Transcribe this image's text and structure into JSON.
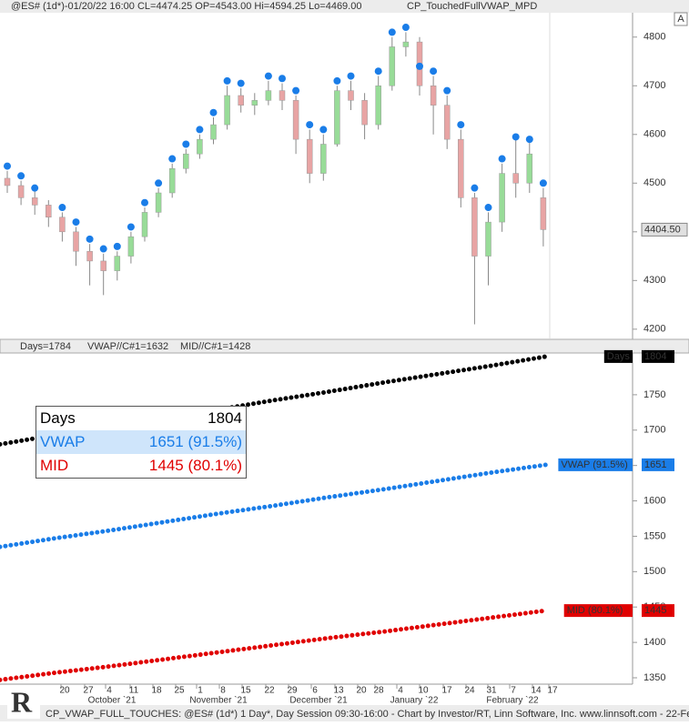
{
  "header": {
    "instrument": "@ES# (1d*)-01/20/22 16:00 CL=4474.25 OP=4543.00 Hi=4594.25 Lo=4469.00",
    "indicator": "CP_TouchedFullVWAP_MPD",
    "last_price": "4404.50",
    "autoscale": "A"
  },
  "lower_legend": [
    "Days=1784",
    "VWAP//C#1=1632",
    "MID//C#1=1428"
  ],
  "tooltip": [
    {
      "label": "Days",
      "value": "1804"
    },
    {
      "label": "VWAP",
      "value": "1651 (91.5%)"
    },
    {
      "label": "MID",
      "value": "1445 (80.1%)"
    }
  ],
  "date_labels": [
    "20",
    "27",
    "4",
    "11",
    "18",
    "25",
    "1",
    "8",
    "15",
    "22",
    "29",
    "6",
    "13",
    "20",
    "28",
    "4",
    "10",
    "17",
    "24",
    "31",
    "7",
    "14",
    "17"
  ],
  "month_labels": [
    "October `21",
    "November `21",
    "December `21",
    "January `22",
    "February `22"
  ],
  "footer": "CP_VWAP_FULL_TOUCHES: @ES# (1d*) 1 Day*, Day Session 09:30-16:00 - Chart by Investor/RT, Linn Software, Inc. www.linnsoft.com - 22-Feb",
  "chart_data": [
    {
      "type": "candlestick",
      "up_color": "#98dc98",
      "down_color": "#e8a4a4",
      "touch_color": "#1a7de8",
      "open": [
        4510,
        4495,
        4470,
        4455,
        4430,
        4400,
        4360,
        4340,
        4320,
        4350,
        4390,
        4440,
        4480,
        4530,
        4560,
        4590,
        4620,
        4680,
        4660,
        4670,
        4690,
        4670,
        4590,
        4520,
        4580,
        4690,
        4670,
        4620,
        4700,
        4780,
        4790,
        4700,
        4660,
        4590,
        4470,
        4350,
        4420,
        4520,
        4500,
        4470
      ],
      "high": [
        4525,
        4505,
        4485,
        4465,
        4440,
        4410,
        4375,
        4355,
        4360,
        4400,
        4450,
        4490,
        4540,
        4570,
        4600,
        4635,
        4700,
        4695,
        4685,
        4710,
        4705,
        4680,
        4610,
        4600,
        4700,
        4710,
        4685,
        4720,
        4800,
        4810,
        4800,
        4720,
        4680,
        4610,
        4480,
        4440,
        4540,
        4590,
        4585,
        4490
      ],
      "low": [
        4480,
        4455,
        4435,
        4410,
        4380,
        4330,
        4290,
        4270,
        4300,
        4335,
        4380,
        4430,
        4470,
        4520,
        4550,
        4580,
        4610,
        4645,
        4640,
        4660,
        4650,
        4560,
        4500,
        4505,
        4575,
        4650,
        4590,
        4610,
        4690,
        4760,
        4680,
        4600,
        4570,
        4450,
        4210,
        4290,
        4400,
        4470,
        4480,
        4370
      ],
      "close": [
        4495,
        4470,
        4455,
        4430,
        4400,
        4360,
        4340,
        4320,
        4350,
        4390,
        4440,
        4480,
        4530,
        4560,
        4590,
        4620,
        4680,
        4660,
        4670,
        4690,
        4670,
        4590,
        4520,
        4580,
        4690,
        4670,
        4620,
        4700,
        4780,
        4790,
        4700,
        4660,
        4590,
        4470,
        4350,
        4420,
        4520,
        4500,
        4560,
        4404.5
      ],
      "touches": [
        4535,
        4515,
        4490,
        null,
        4450,
        4420,
        4385,
        4365,
        4370,
        4410,
        4460,
        4500,
        4550,
        4580,
        4610,
        4645,
        4710,
        4705,
        null,
        4720,
        4715,
        4690,
        4620,
        4610,
        4710,
        4720,
        null,
        4730,
        4810,
        4820,
        4740,
        4730,
        4690,
        4620,
        4490,
        4450,
        4550,
        4595,
        4590,
        4500
      ],
      "ylim": [
        4181,
        4850
      ],
      "yticks": [
        4200,
        4300,
        4400,
        4500,
        4600,
        4700,
        4800
      ]
    },
    {
      "type": "line",
      "series": [
        {
          "name": "Days",
          "color": "#000000",
          "values": [
            1680,
            1693,
            1705,
            1717,
            1729,
            1742,
            1754,
            1767,
            1779,
            1791,
            1804
          ],
          "end_label": "1804"
        },
        {
          "name": "VWAP (91.5%)",
          "color": "#1a7de8",
          "values": [
            1535,
            1547,
            1558,
            1570,
            1582,
            1593,
            1605,
            1616,
            1628,
            1640,
            1651
          ],
          "end_label": "1651"
        },
        {
          "name": "MID (80.1%)",
          "color": "#e00000",
          "values": [
            1347,
            1357,
            1366,
            1376,
            1386,
            1396,
            1406,
            1415,
            1425,
            1435,
            1445
          ],
          "end_label": "1445"
        }
      ],
      "ylim": [
        1341,
        1809
      ],
      "yticks": [
        1350,
        1400,
        1450,
        1500,
        1550,
        1600,
        1650,
        1700,
        1750
      ]
    }
  ]
}
